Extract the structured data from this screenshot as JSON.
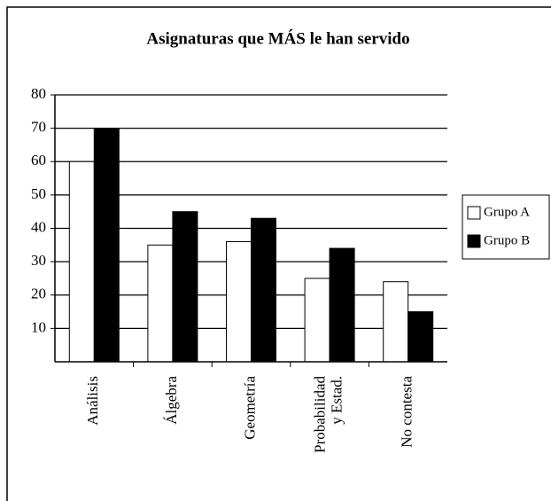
{
  "chart_data": {
    "type": "bar",
    "title": "Asignaturas que MÁS le han servido",
    "categories": [
      "Análisis",
      "Álgebra",
      "Geometría",
      "Probabilidad\ny Estad.",
      "No contesta"
    ],
    "series": [
      {
        "name": "Grupo A",
        "color": "#ffffff",
        "values": [
          60,
          35,
          36,
          25,
          24
        ]
      },
      {
        "name": "Grupo B",
        "color": "#000000",
        "values": [
          70,
          45,
          43,
          34,
          15
        ]
      }
    ],
    "ylim": [
      0,
      80
    ],
    "yticks": [
      10,
      20,
      30,
      40,
      50,
      60,
      70,
      80
    ],
    "grid": true,
    "legend": "right"
  }
}
